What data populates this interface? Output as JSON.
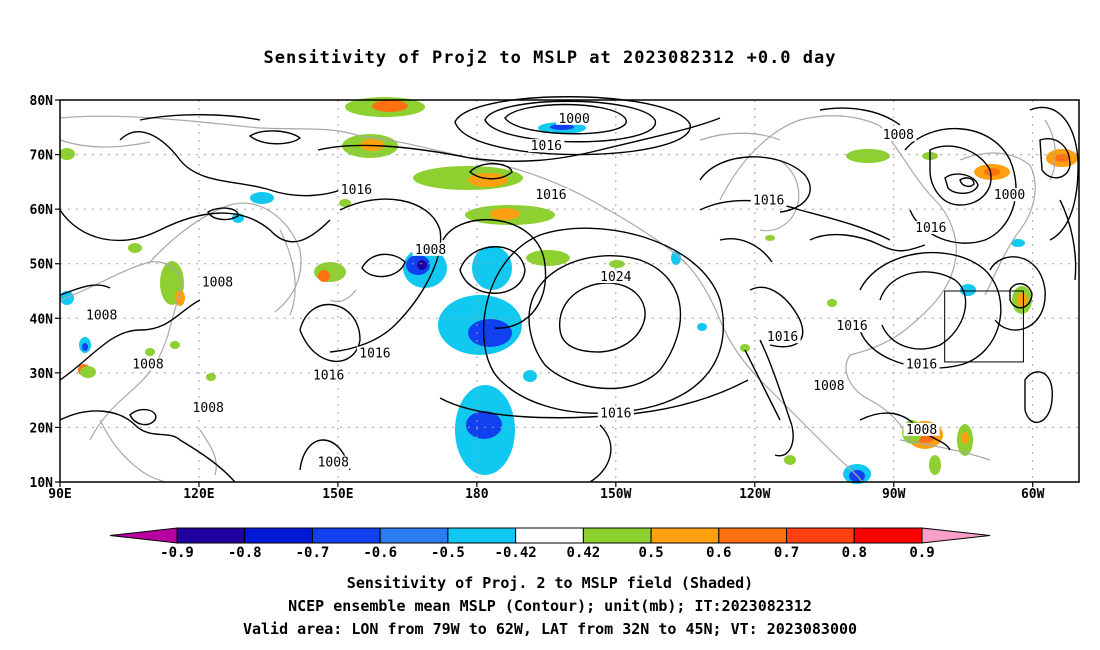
{
  "title": "Sensitivity of Proj2 to MSLP at 2023082312 +0.0 day",
  "lat_labels": [
    "80N",
    "70N",
    "60N",
    "50N",
    "40N",
    "30N",
    "20N",
    "10N"
  ],
  "lon_labels": [
    "90E",
    "120E",
    "150E",
    "180",
    "150W",
    "120W",
    "90W",
    "60W"
  ],
  "contour_labels": [
    {
      "text": "1000",
      "lon": -159,
      "lat": 76
    },
    {
      "text": "1016",
      "lon": -165,
      "lat": 71
    },
    {
      "text": "1008",
      "lon": -89,
      "lat": 73
    },
    {
      "text": "1016",
      "lon": 154,
      "lat": 63
    },
    {
      "text": "1016",
      "lon": -164,
      "lat": 62
    },
    {
      "text": "1016",
      "lon": -117,
      "lat": 61
    },
    {
      "text": "1000",
      "lon": -65,
      "lat": 62
    },
    {
      "text": "1016",
      "lon": -82,
      "lat": 56
    },
    {
      "text": "1008",
      "lon": 170,
      "lat": 52
    },
    {
      "text": "1024",
      "lon": -150,
      "lat": 47
    },
    {
      "text": "1008",
      "lon": 124,
      "lat": 46
    },
    {
      "text": "1008",
      "lon": 99,
      "lat": 40
    },
    {
      "text": "1016",
      "lon": -114,
      "lat": 36
    },
    {
      "text": "1016",
      "lon": -99,
      "lat": 38
    },
    {
      "text": "1016",
      "lon": 158,
      "lat": 33
    },
    {
      "text": "1016",
      "lon": 148,
      "lat": 29
    },
    {
      "text": "1016",
      "lon": -84,
      "lat": 31
    },
    {
      "text": "1008",
      "lon": 109,
      "lat": 31
    },
    {
      "text": "1008",
      "lon": -104,
      "lat": 27
    },
    {
      "text": "1008",
      "lon": 122,
      "lat": 23
    },
    {
      "text": "1016",
      "lon": -150,
      "lat": 22
    },
    {
      "text": "1008",
      "lon": -84,
      "lat": 19
    },
    {
      "text": "1008",
      "lon": 149,
      "lat": 13
    }
  ],
  "colorbar": {
    "colors": [
      "#2000a0",
      "#0018d8",
      "#1040f0",
      "#2a7cf0",
      "#10c8f0",
      "#ffffff",
      "#8ed030",
      "#ffa010",
      "#ff7010",
      "#ff4010",
      "#ff0000"
    ],
    "left_tip_color": "#b800a0",
    "right_tip_color": "#f8a0c8",
    "labels": [
      "-0.9",
      "-0.8",
      "-0.7",
      "-0.6",
      "-0.5",
      "-0.42",
      "0.42",
      "0.5",
      "0.6",
      "0.7",
      "0.8",
      "0.9"
    ]
  },
  "captions": {
    "line1": "Sensitivity of Proj. 2 to MSLP field (Shaded)",
    "line2": "NCEP ensemble mean MSLP (Contour); unit(mb); IT:2023082312",
    "line3": "Valid area: LON from 79W to 62W, LAT from 32N to 45N; VT: 2023083000"
  },
  "valid_area": {
    "lon_min": -79,
    "lon_max": -62,
    "lat_min": 32,
    "lat_max": 45
  },
  "map_extent": {
    "lon_min": 90,
    "lon_max": 310,
    "lat_min": 10,
    "lat_max": 80
  },
  "colors": {
    "contour": "#000000",
    "coast": "#a8a8a8",
    "grid": "#a0a0a0"
  }
}
